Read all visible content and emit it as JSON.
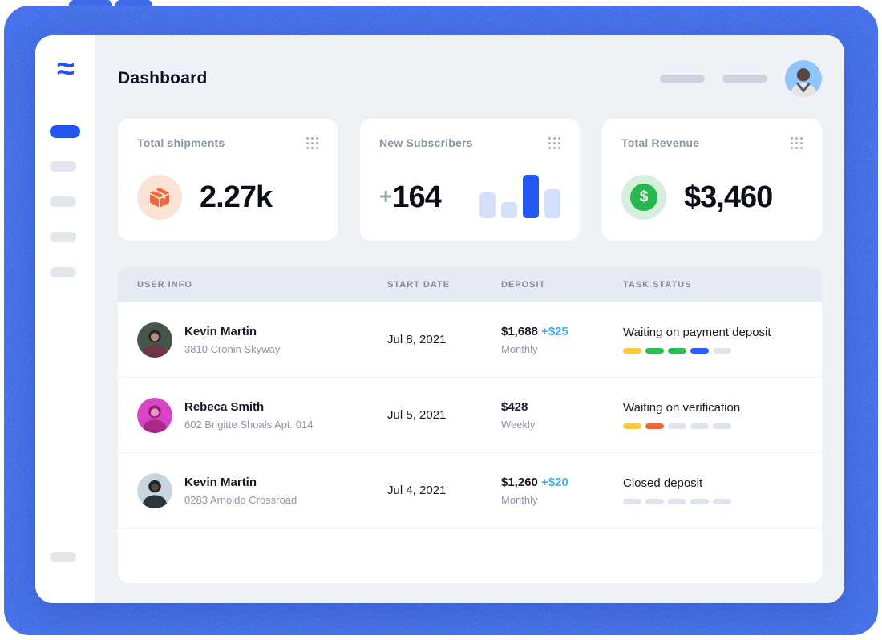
{
  "app": {
    "page_title": "Dashboard",
    "logo_glyph": "≈"
  },
  "sidebar": {
    "items": [
      {
        "state": "active"
      },
      {
        "state": "inactive"
      },
      {
        "state": "inactive"
      },
      {
        "state": "inactive"
      },
      {
        "state": "inactive"
      },
      {
        "state": "inactive-bottom"
      }
    ]
  },
  "cards": [
    {
      "title": "Total shipments",
      "value": "2.27k",
      "icon": "package-icon"
    },
    {
      "title": "New Subscribers",
      "value_prefix": "+",
      "value": "164",
      "chart": {
        "type": "bar",
        "bars": [
          32,
          20,
          54,
          36
        ],
        "active_index": 2
      }
    },
    {
      "title": "Total Revenue",
      "value": "$3,460",
      "icon": "dollar-icon",
      "dollar_glyph": "$"
    }
  ],
  "table": {
    "columns": [
      "User info",
      "Start date",
      "Deposit",
      "Task status"
    ],
    "rows": [
      {
        "name": "Kevin Martin",
        "address": "3810 Cronin Skyway",
        "start_date": "Jul 8, 2021",
        "deposit": "$1,688",
        "deposit_extra": "+$25",
        "frequency": "Monthly",
        "status": "Waiting on payment deposit",
        "segments": [
          "yellow",
          "green",
          "green",
          "blue",
          "gray"
        ]
      },
      {
        "name": "Rebeca Smith",
        "address": "602 Brigitte Shoals Apt. 014",
        "start_date": "Jul 5, 2021",
        "deposit": "$428",
        "deposit_extra": "",
        "frequency": "Weekly",
        "status": "Waiting on verification",
        "segments": [
          "yellow",
          "orange",
          "gray",
          "gray",
          "gray"
        ]
      },
      {
        "name": "Kevin Martin",
        "address": "0283 Arnoldo Crossroad",
        "start_date": "Jul 4, 2021",
        "deposit": "$1,260",
        "deposit_extra": "+$20",
        "frequency": "Monthly",
        "status": "Closed deposit",
        "segments": [
          "gray",
          "gray",
          "gray",
          "gray",
          "gray"
        ]
      }
    ]
  },
  "colors": {
    "accent_blue": "#2353F1",
    "frame_blue": "#3E6BE8",
    "deposit_extra_blue": "#41B1F7",
    "segment_palette": {
      "yellow": "#FFC742",
      "green": "#29BD52",
      "blue": "#2E5BFF",
      "orange": "#F2663B",
      "gray": "#DFE3EB"
    }
  }
}
